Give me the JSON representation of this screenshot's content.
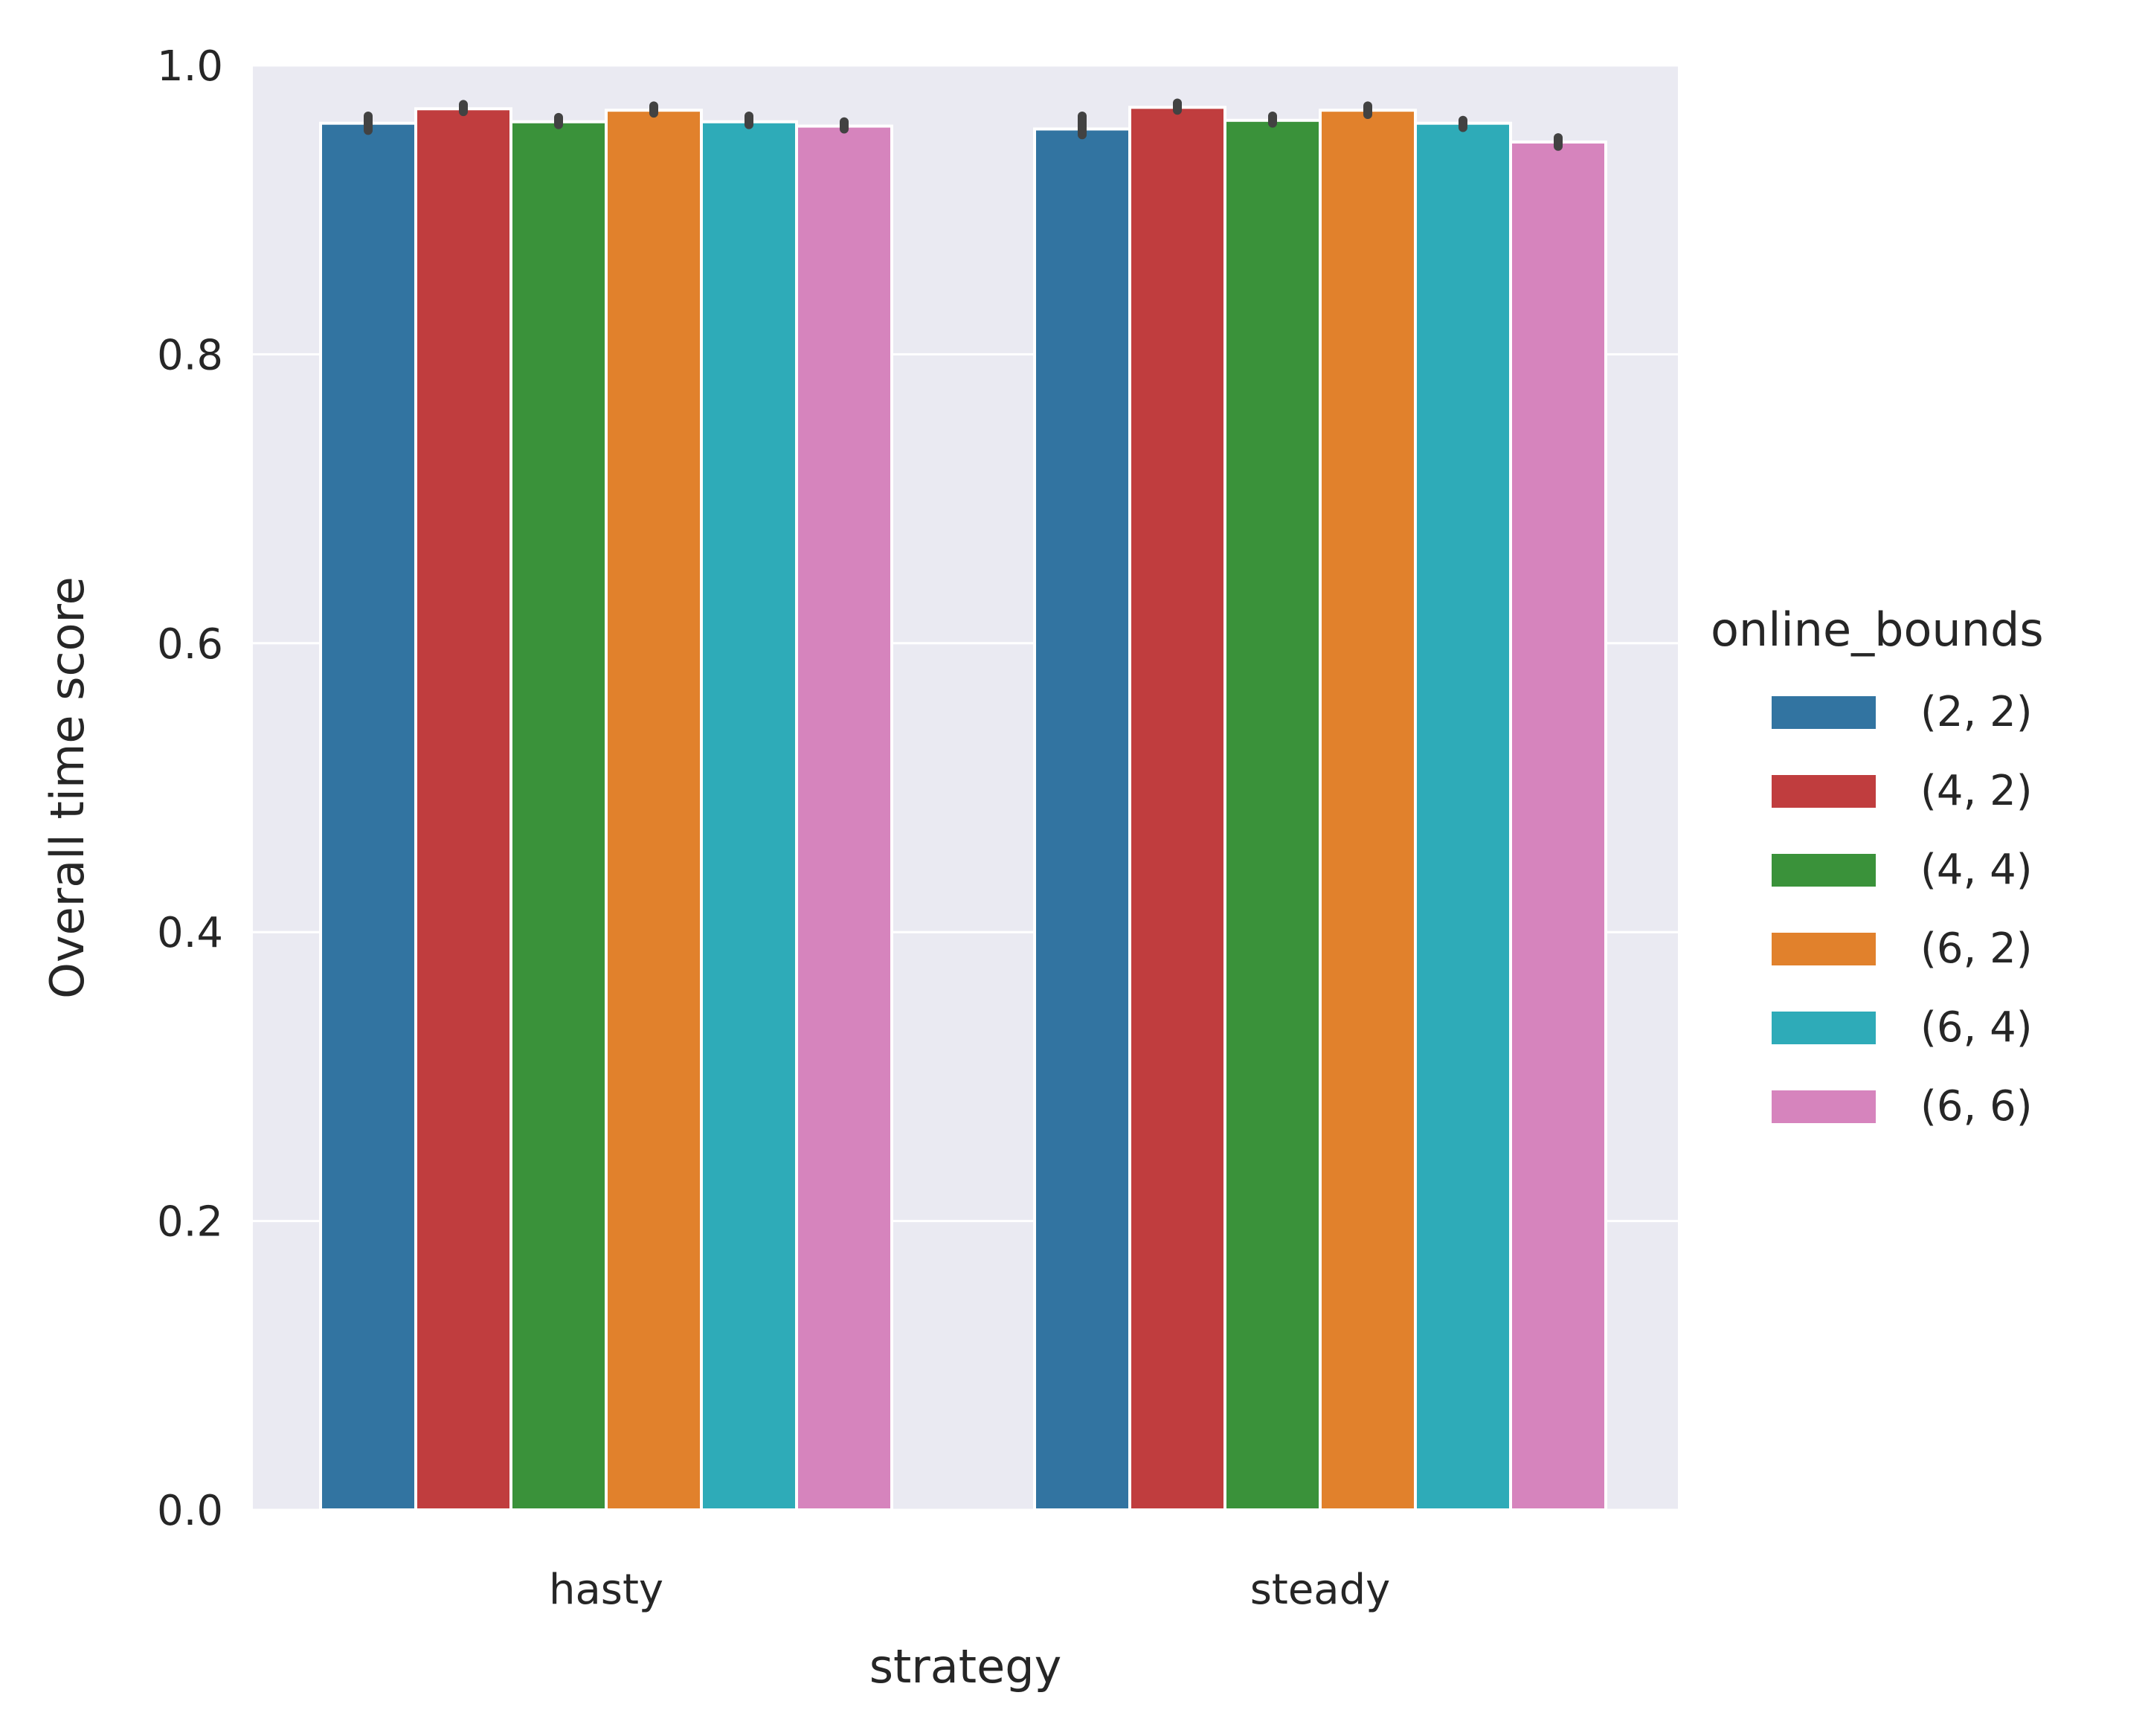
{
  "chart_data": {
    "type": "bar",
    "categories": [
      "hasty",
      "steady"
    ],
    "xlabel": "strategy",
    "ylabel": "Overall time score",
    "ylim": [
      0,
      1.0
    ],
    "yticks": [
      "0.0",
      "0.2",
      "0.4",
      "0.6",
      "0.8",
      "1.0"
    ],
    "grid": true,
    "legend": {
      "title": "online_bounds",
      "placement": "right"
    },
    "series": [
      {
        "name": "(2, 2)",
        "color": "#3274a1",
        "values": [
          0.96,
          0.956
        ],
        "err": [
          [
            0.955,
            0.965
          ],
          [
            0.952,
            0.965
          ]
        ]
      },
      {
        "name": "(4, 2)",
        "color": "#c03d3e",
        "values": [
          0.97,
          0.971
        ],
        "err": [
          [
            0.968,
            0.973
          ],
          [
            0.969,
            0.974
          ]
        ]
      },
      {
        "name": "(4, 4)",
        "color": "#3a923a",
        "values": [
          0.961,
          0.962
        ],
        "err": [
          [
            0.959,
            0.964
          ],
          [
            0.96,
            0.965
          ]
        ]
      },
      {
        "name": "(6, 2)",
        "color": "#e1812c",
        "values": [
          0.969,
          0.969
        ],
        "err": [
          [
            0.967,
            0.972
          ],
          [
            0.966,
            0.972
          ]
        ]
      },
      {
        "name": "(6, 4)",
        "color": "#2eabb8",
        "values": [
          0.961,
          0.96
        ],
        "err": [
          [
            0.959,
            0.965
          ],
          [
            0.957,
            0.962
          ]
        ]
      },
      {
        "name": "(6, 6)",
        "color": "#d684bd",
        "values": [
          0.958,
          0.947
        ],
        "err": [
          [
            0.956,
            0.961
          ],
          [
            0.944,
            0.95
          ]
        ]
      }
    ],
    "colors": {
      "plot_background": "#eaeaf2",
      "grid": "#ffffff",
      "errorbar": "#424242",
      "text": "#262626"
    }
  }
}
